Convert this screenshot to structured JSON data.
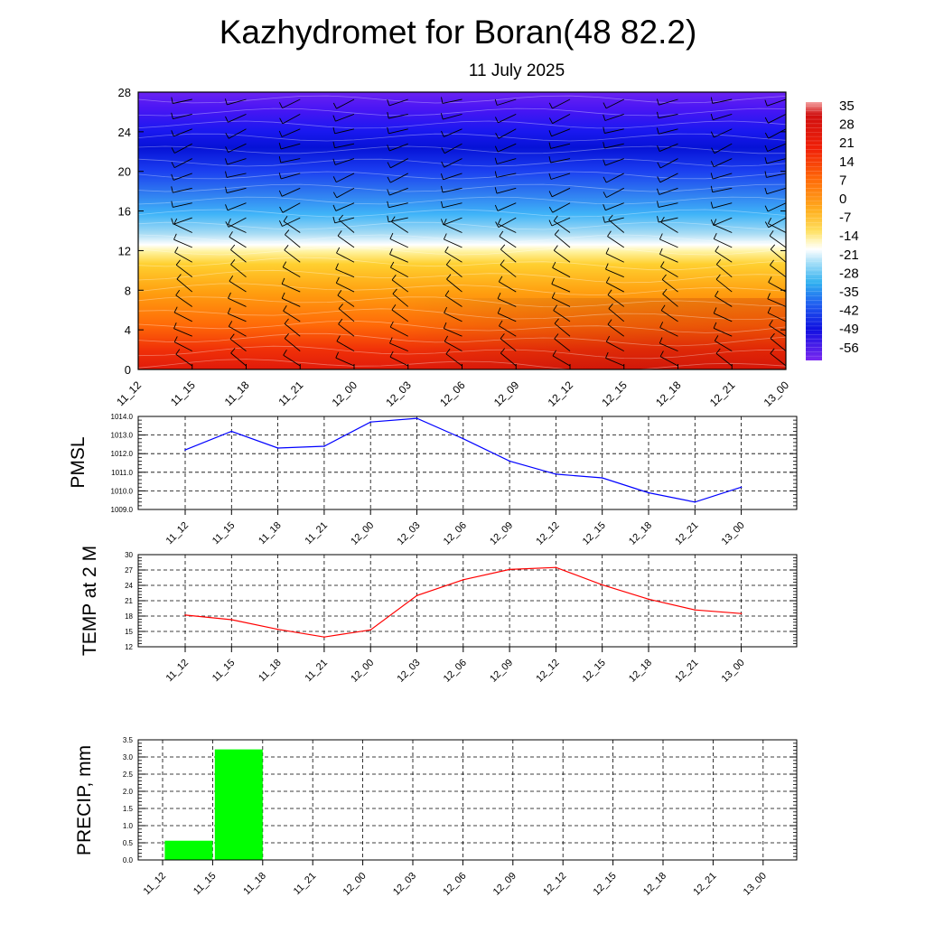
{
  "title": "Kazhydromet for Boran(48 82.2)",
  "subtitle": "11 July 2025",
  "colors": {
    "pmsl_line": "#0000ff",
    "temp_line": "#ff0000",
    "precip_bar": "#00ff00",
    "grid": "#000000"
  },
  "chart_data": [
    {
      "type": "heatmap",
      "x_ticks": [
        "11_12",
        "11_15",
        "11_18",
        "11_21",
        "12_00",
        "12_03",
        "12_06",
        "12_09",
        "12_12",
        "12_15",
        "12_18",
        "12_21",
        "13_00"
      ],
      "y_ticks": [
        "0",
        "4",
        "8",
        "12",
        "16",
        "20",
        "24",
        "28"
      ],
      "ylim": [
        0,
        28
      ],
      "colorbar_labels": [
        "35",
        "28",
        "21",
        "14",
        "7",
        "0",
        "-7",
        "-14",
        "-21",
        "-28",
        "-35",
        "-42",
        "-49",
        "-56"
      ],
      "overlay": "wind barbs and contour lines"
    },
    {
      "type": "line",
      "ylabel": "PMSL",
      "x_ticks": [
        "11_12",
        "11_15",
        "11_18",
        "11_21",
        "12_00",
        "12_03",
        "12_06",
        "12_09",
        "12_12",
        "12_15",
        "12_18",
        "12_21",
        "13_00"
      ],
      "y_ticks": [
        "1014.0",
        "1013.0",
        "1012.0",
        "1011.0",
        "1010.0",
        "1009.0"
      ],
      "ylim": [
        1009,
        1014
      ],
      "values": [
        1012.2,
        1013.2,
        1012.3,
        1012.4,
        1013.7,
        1013.9,
        1012.8,
        1011.6,
        1010.9,
        1010.7,
        1009.9,
        1009.4,
        1010.2
      ],
      "grid": true
    },
    {
      "type": "line",
      "ylabel": "TEMP at 2 M",
      "x_ticks": [
        "11_12",
        "11_15",
        "11_18",
        "11_21",
        "12_00",
        "12_03",
        "12_06",
        "12_09",
        "12_12",
        "12_15",
        "12_18",
        "12_21",
        "13_00"
      ],
      "y_ticks": [
        "30",
        "27",
        "24",
        "21",
        "18",
        "15",
        "12"
      ],
      "ylim": [
        12,
        30
      ],
      "values": [
        18.2,
        17.3,
        15.4,
        13.9,
        15.3,
        22.0,
        25.1,
        27.1,
        27.5,
        24.1,
        21.3,
        19.2,
        18.5
      ],
      "grid": true
    },
    {
      "type": "bar",
      "ylabel": "PRECIP, mm",
      "x_ticks": [
        "11_12",
        "11_15",
        "11_18",
        "11_21",
        "12_00",
        "12_03",
        "12_06",
        "12_09",
        "12_12",
        "12_15",
        "12_18",
        "12_21",
        "13_00"
      ],
      "y_ticks": [
        "3.5",
        "3.0",
        "2.5",
        "2.0",
        "1.5",
        "1.0",
        "0.5",
        "0.0"
      ],
      "ylim": [
        0,
        3.5
      ],
      "values": [
        0,
        0.56,
        3.22,
        0,
        0,
        0,
        0,
        0,
        0,
        0,
        0,
        0,
        0
      ],
      "grid": true
    }
  ]
}
